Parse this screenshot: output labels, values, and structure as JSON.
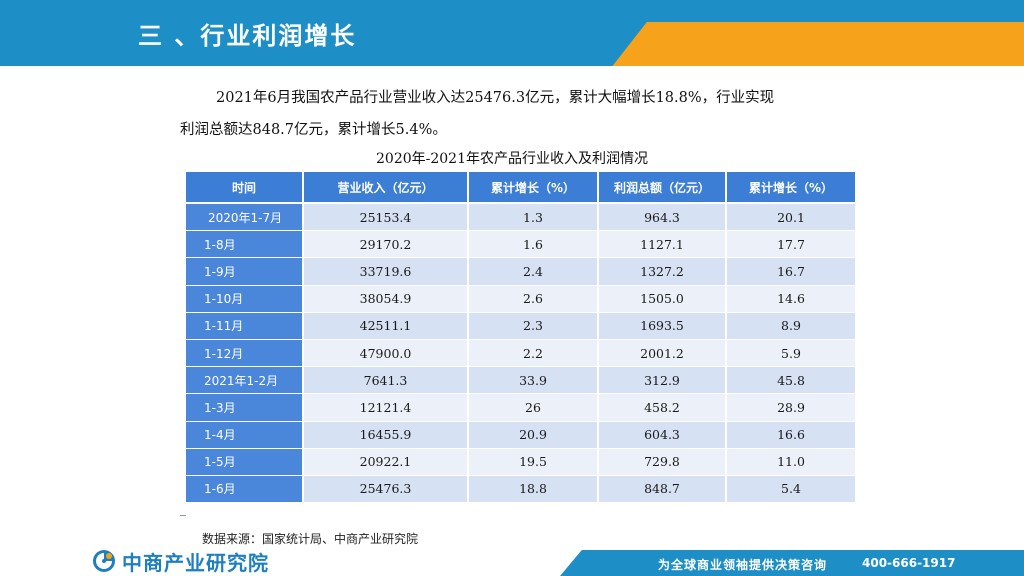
{
  "header": {
    "title": "三 、行业利润增长"
  },
  "paragraph": {
    "line1": "2021年6月我国农产品行业营业收入达25476.3亿元，累计大幅增长18.8%，行业实现",
    "line2": "利润总额达848.7亿元，累计增长5.4%。"
  },
  "table": {
    "title": "2020年-2021年农产品行业收入及利润情况",
    "headers": [
      "时间",
      "营业收入（亿元）",
      "累计增长（%）",
      "利润总额（亿元）",
      "累计增长（%）"
    ],
    "rows": [
      [
        "2020年1-7月",
        "25153.4",
        "1.3",
        "964.3",
        "20.1"
      ],
      [
        "1-8月",
        "29170.2",
        "1.6",
        "1127.1",
        "17.7"
      ],
      [
        "1-9月",
        "33719.6",
        "2.4",
        "1327.2",
        "16.7"
      ],
      [
        "1-10月",
        "38054.9",
        "2.6",
        "1505.0",
        "14.6"
      ],
      [
        "1-11月",
        "42511.1",
        "2.3",
        "1693.5",
        "8.9"
      ],
      [
        "1-12月",
        "47900.0",
        "2.2",
        "2001.2",
        "5.9"
      ],
      [
        "2021年1-2月",
        "7641.3",
        "33.9",
        "312.9",
        "45.8"
      ],
      [
        "1-3月",
        "12121.4",
        "26",
        "458.2",
        "28.9"
      ],
      [
        "1-4月",
        "16455.9",
        "20.9",
        "604.3",
        "16.6"
      ],
      [
        "1-5月",
        "20922.1",
        "19.5",
        "729.8",
        "11.0"
      ],
      [
        "1-6月",
        "25476.3",
        "18.8",
        "848.7",
        "5.4"
      ]
    ]
  },
  "source": "数据来源：国家统计局、中商产业研究院",
  "footer": {
    "logo_text": "中商产业研究院",
    "slogan": "为全球商业领袖提供决策咨询",
    "phone": "400-666-1917"
  },
  "colors": {
    "header_blue": "#1e8fc6",
    "accent_orange": "#f6a21a",
    "table_header": "#3c7dd6"
  }
}
